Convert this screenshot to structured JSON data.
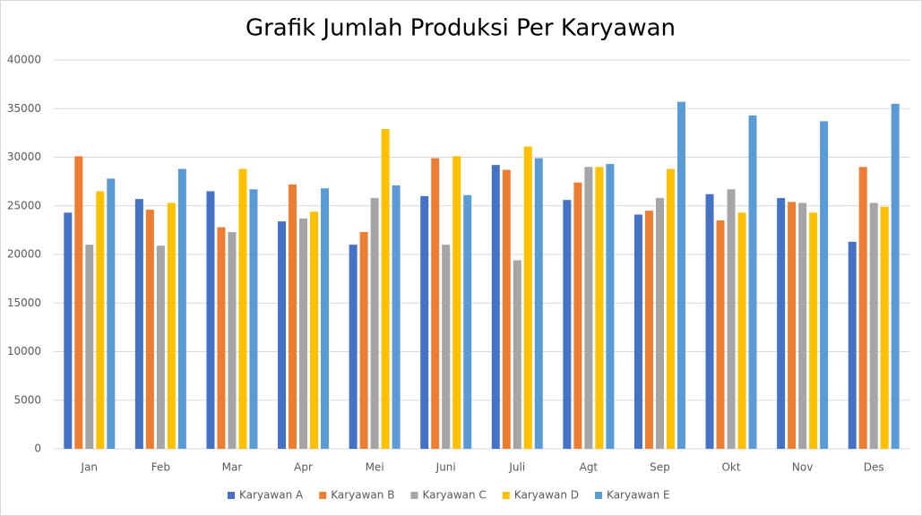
{
  "chart_data": {
    "type": "bar",
    "title": "Grafik Jumlah Produksi Per Karyawan",
    "categories": [
      "Jan",
      "Feb",
      "Mar",
      "Apr",
      "Mei",
      "Juni",
      "Juli",
      "Agt",
      "Sep",
      "Okt",
      "Nov",
      "Des"
    ],
    "series": [
      {
        "name": "Karyawan A",
        "color": "#4472c4",
        "values": [
          24300,
          25700,
          26500,
          23400,
          21000,
          26000,
          29200,
          25600,
          24100,
          26200,
          25800,
          21300
        ]
      },
      {
        "name": "Karyawan B",
        "color": "#ed7d31",
        "values": [
          30100,
          24600,
          22800,
          27200,
          22300,
          29900,
          28700,
          27400,
          24500,
          23500,
          25400,
          29000
        ]
      },
      {
        "name": "Karyawan C",
        "color": "#a5a5a5",
        "values": [
          21000,
          20900,
          22300,
          23700,
          25800,
          21000,
          19400,
          29000,
          25800,
          26700,
          25300,
          25300
        ]
      },
      {
        "name": "Karyawan D",
        "color": "#ffc000",
        "values": [
          26500,
          25300,
          28800,
          24400,
          32900,
          30100,
          31100,
          29000,
          28800,
          24300,
          24300,
          24900
        ]
      },
      {
        "name": "Karyawan E",
        "color": "#5b9bd5",
        "values": [
          27800,
          28800,
          26700,
          26800,
          27100,
          26100,
          29900,
          29300,
          35700,
          34300,
          33700,
          35500
        ]
      }
    ],
    "ylim": [
      0,
      40000
    ],
    "yticks": [
      0,
      5000,
      10000,
      15000,
      20000,
      25000,
      30000,
      35000,
      40000
    ],
    "grid": true,
    "legend": "bottom"
  }
}
